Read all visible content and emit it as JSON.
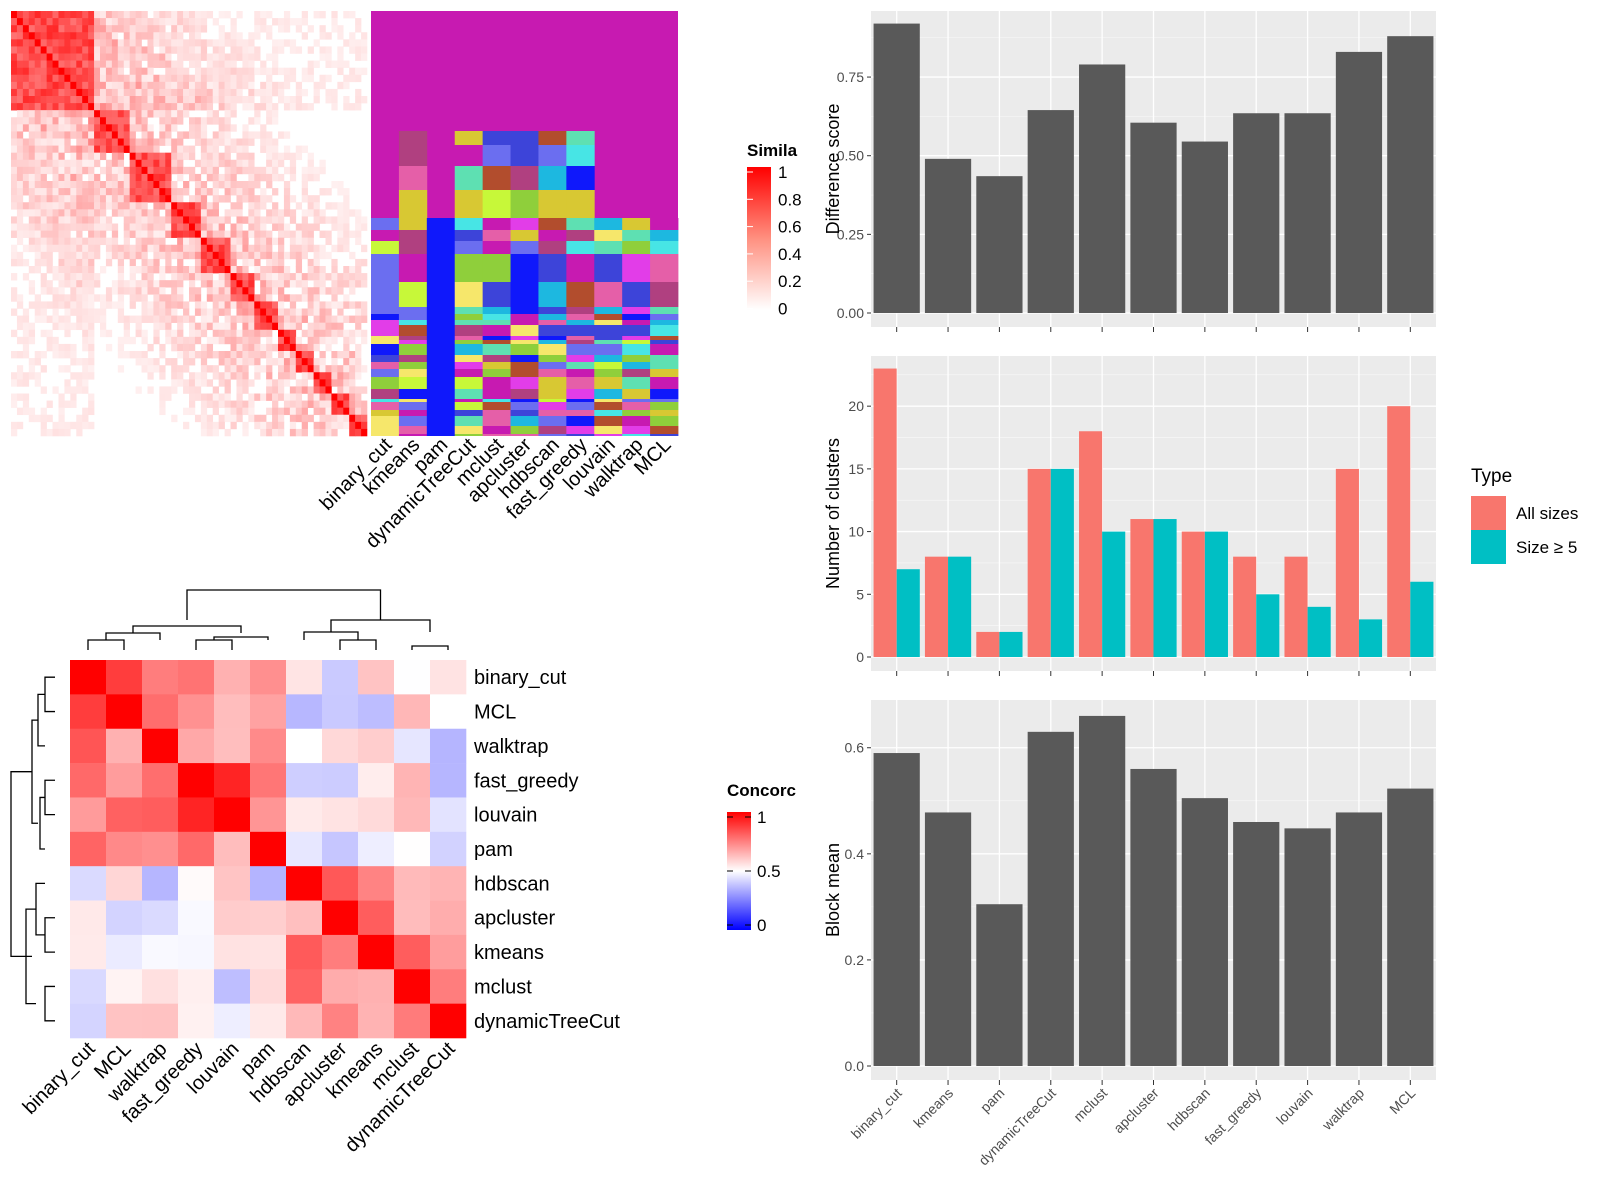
{
  "colors": {
    "panel_bg": "#ebebeb",
    "grid": "#ffffff",
    "bar_dark": "#595959",
    "all_sizes": "#f8766d",
    "size_ge_5": "#00bfc4",
    "concordance_high": "#ff0000",
    "concordance_mid": "#ffffff",
    "concordance_low": "#0000ff"
  },
  "similarity_matrix": {
    "legend_title": "Simila",
    "legend_ticks": [
      "1",
      "0.8",
      "0.6",
      "0.4",
      "0.2",
      "0"
    ]
  },
  "cluster_assignments": {
    "methods": [
      "binary_cut",
      "kmeans",
      "pam",
      "dynamicTreeCut",
      "mclust",
      "apcluster",
      "hdbscan",
      "fast_greedy",
      "louvain",
      "walktrap",
      "MCL"
    ]
  },
  "concordance": {
    "legend_title": "Concorc",
    "legend_ticks": [
      "1",
      "0.5",
      "0"
    ],
    "row_labels": [
      "binary_cut",
      "MCL",
      "walktrap",
      "fast_greedy",
      "louvain",
      "pam",
      "hdbscan",
      "apcluster",
      "kmeans",
      "mclust",
      "dynamicTreeCut"
    ],
    "col_labels": [
      "binary_cut",
      "MCL",
      "walktrap",
      "fast_greedy",
      "louvain",
      "pam",
      "hdbscan",
      "apcluster",
      "kmeans",
      "mclust",
      "dynamicTreeCut"
    ]
  },
  "chart_data": [
    {
      "type": "bar",
      "categories": [
        "binary_cut",
        "kmeans",
        "pam",
        "dynamicTreeCut",
        "mclust",
        "apcluster",
        "hdbscan",
        "fast_greedy",
        "louvain",
        "walktrap",
        "MCL"
      ],
      "values": [
        0.92,
        0.49,
        0.435,
        0.645,
        0.79,
        0.605,
        0.545,
        0.635,
        0.635,
        0.83,
        0.88
      ],
      "ylabel": "Difference score",
      "yticks": [
        "0.00",
        "0.25",
        "0.50",
        "0.75"
      ],
      "ylim": [
        0,
        0.96
      ]
    },
    {
      "type": "bar",
      "categories": [
        "binary_cut",
        "kmeans",
        "pam",
        "dynamicTreeCut",
        "mclust",
        "apcluster",
        "hdbscan",
        "fast_greedy",
        "louvain",
        "walktrap",
        "MCL"
      ],
      "series": [
        {
          "name": "All sizes",
          "values": [
            23,
            8,
            2,
            15,
            18,
            11,
            10,
            8,
            8,
            15,
            20
          ]
        },
        {
          "name": "Size ≥ 5",
          "values": [
            7,
            8,
            2,
            15,
            10,
            11,
            10,
            5,
            4,
            3,
            6
          ]
        }
      ],
      "ylabel": "Number of clusters",
      "yticks": [
        "0",
        "5",
        "10",
        "15",
        "20"
      ],
      "ylim": [
        0,
        24
      ],
      "legend_title": "Type",
      "legend_position": "right"
    },
    {
      "type": "bar",
      "categories": [
        "binary_cut",
        "kmeans",
        "pam",
        "dynamicTreeCut",
        "mclust",
        "apcluster",
        "hdbscan",
        "fast_greedy",
        "louvain",
        "walktrap",
        "MCL"
      ],
      "values": [
        0.59,
        0.478,
        0.305,
        0.63,
        0.66,
        0.56,
        0.505,
        0.46,
        0.448,
        0.478,
        0.523
      ],
      "ylabel": "Block mean",
      "yticks": [
        "0.0",
        "0.2",
        "0.4",
        "0.6"
      ],
      "ylim": [
        0,
        0.69
      ]
    }
  ]
}
